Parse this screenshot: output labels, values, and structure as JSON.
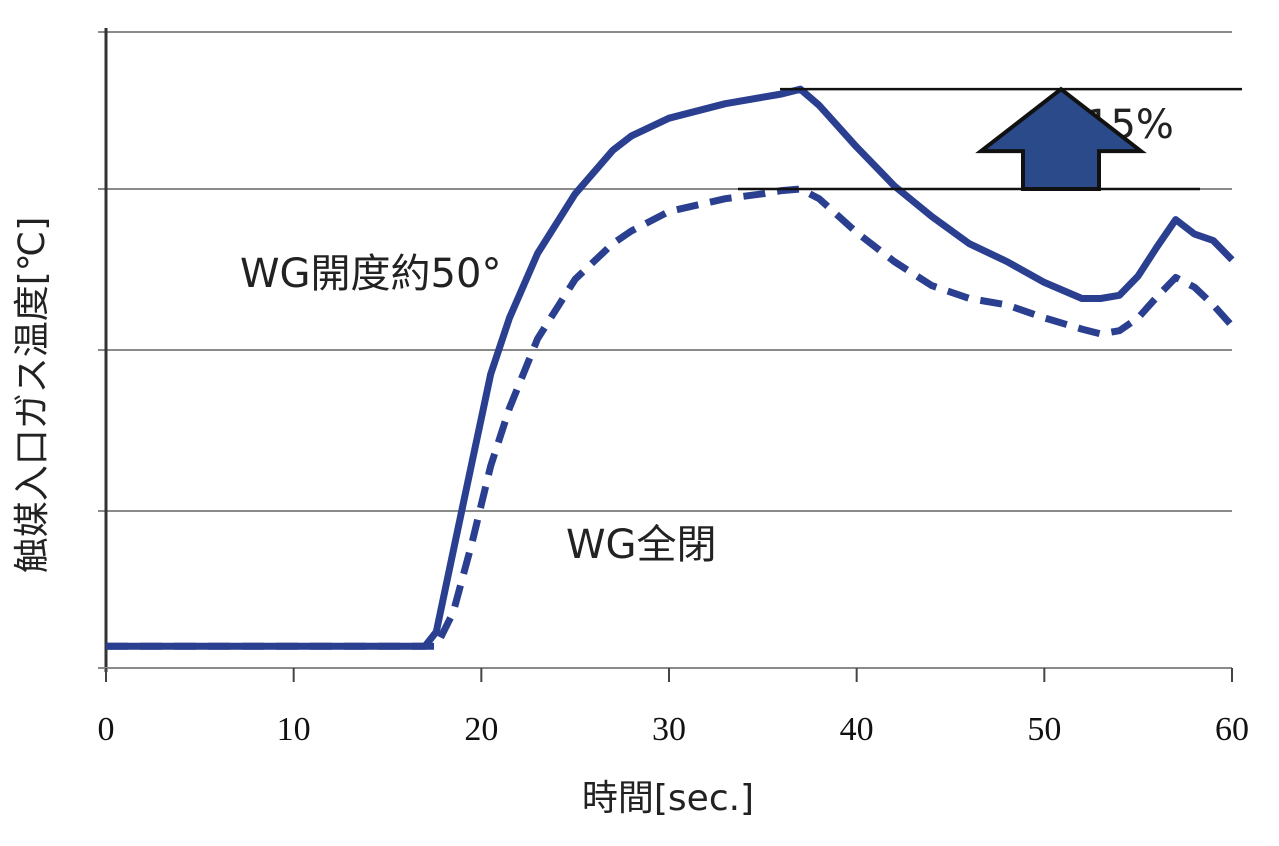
{
  "chart_data": {
    "type": "line",
    "xlabel": "時間[sec.]",
    "ylabel": "触媒入口ガス温度[℃]",
    "xlim": [
      0,
      60
    ],
    "ylim": [
      0,
      4
    ],
    "x_ticks": [
      "0",
      "10",
      "20",
      "30",
      "40",
      "50",
      "60"
    ],
    "grid": "horizontal",
    "series": [
      {
        "name": "WG開度約50°",
        "style": "solid",
        "color": "#2a3f8f",
        "x": [
          0,
          17,
          17.6,
          18.5,
          19.5,
          20.5,
          21.5,
          23,
          25,
          27,
          28,
          30,
          33,
          35,
          36,
          37,
          38,
          40,
          42,
          44,
          46,
          48,
          50,
          52,
          53,
          54,
          55,
          56,
          57,
          58,
          59,
          60
        ],
        "y": [
          0.16,
          0.16,
          0.25,
          0.75,
          1.3,
          1.85,
          2.2,
          2.6,
          2.97,
          3.24,
          3.33,
          3.44,
          3.53,
          3.57,
          3.59,
          3.62,
          3.52,
          3.26,
          3.02,
          2.83,
          2.66,
          2.55,
          2.42,
          2.32,
          2.32,
          2.34,
          2.46,
          2.64,
          2.81,
          2.72,
          2.68,
          2.56
        ]
      },
      {
        "name": "WG全閉",
        "style": "dashed",
        "color": "#2a3f8f",
        "x": [
          0,
          17,
          17.6,
          18.5,
          19.5,
          20.5,
          21.5,
          23,
          25,
          27,
          28,
          30,
          33,
          35,
          36,
          37,
          38,
          40,
          42,
          44,
          46,
          48,
          50,
          52,
          53,
          54,
          55,
          56,
          57,
          58,
          59,
          60
        ],
        "y": [
          0.16,
          0.16,
          0.16,
          0.37,
          0.8,
          1.28,
          1.64,
          2.07,
          2.44,
          2.66,
          2.74,
          2.86,
          2.94,
          2.97,
          2.99,
          3.0,
          2.94,
          2.73,
          2.55,
          2.4,
          2.32,
          2.28,
          2.2,
          2.13,
          2.1,
          2.12,
          2.2,
          2.33,
          2.45,
          2.39,
          2.28,
          2.15
        ]
      }
    ],
    "annotations": {
      "series_label_solid": "WG開度約50°",
      "series_label_dashed": "WG全閉",
      "increase_label": "＋15%",
      "arrow_direction": "up",
      "arrow_color": "#2b4a8a"
    }
  }
}
